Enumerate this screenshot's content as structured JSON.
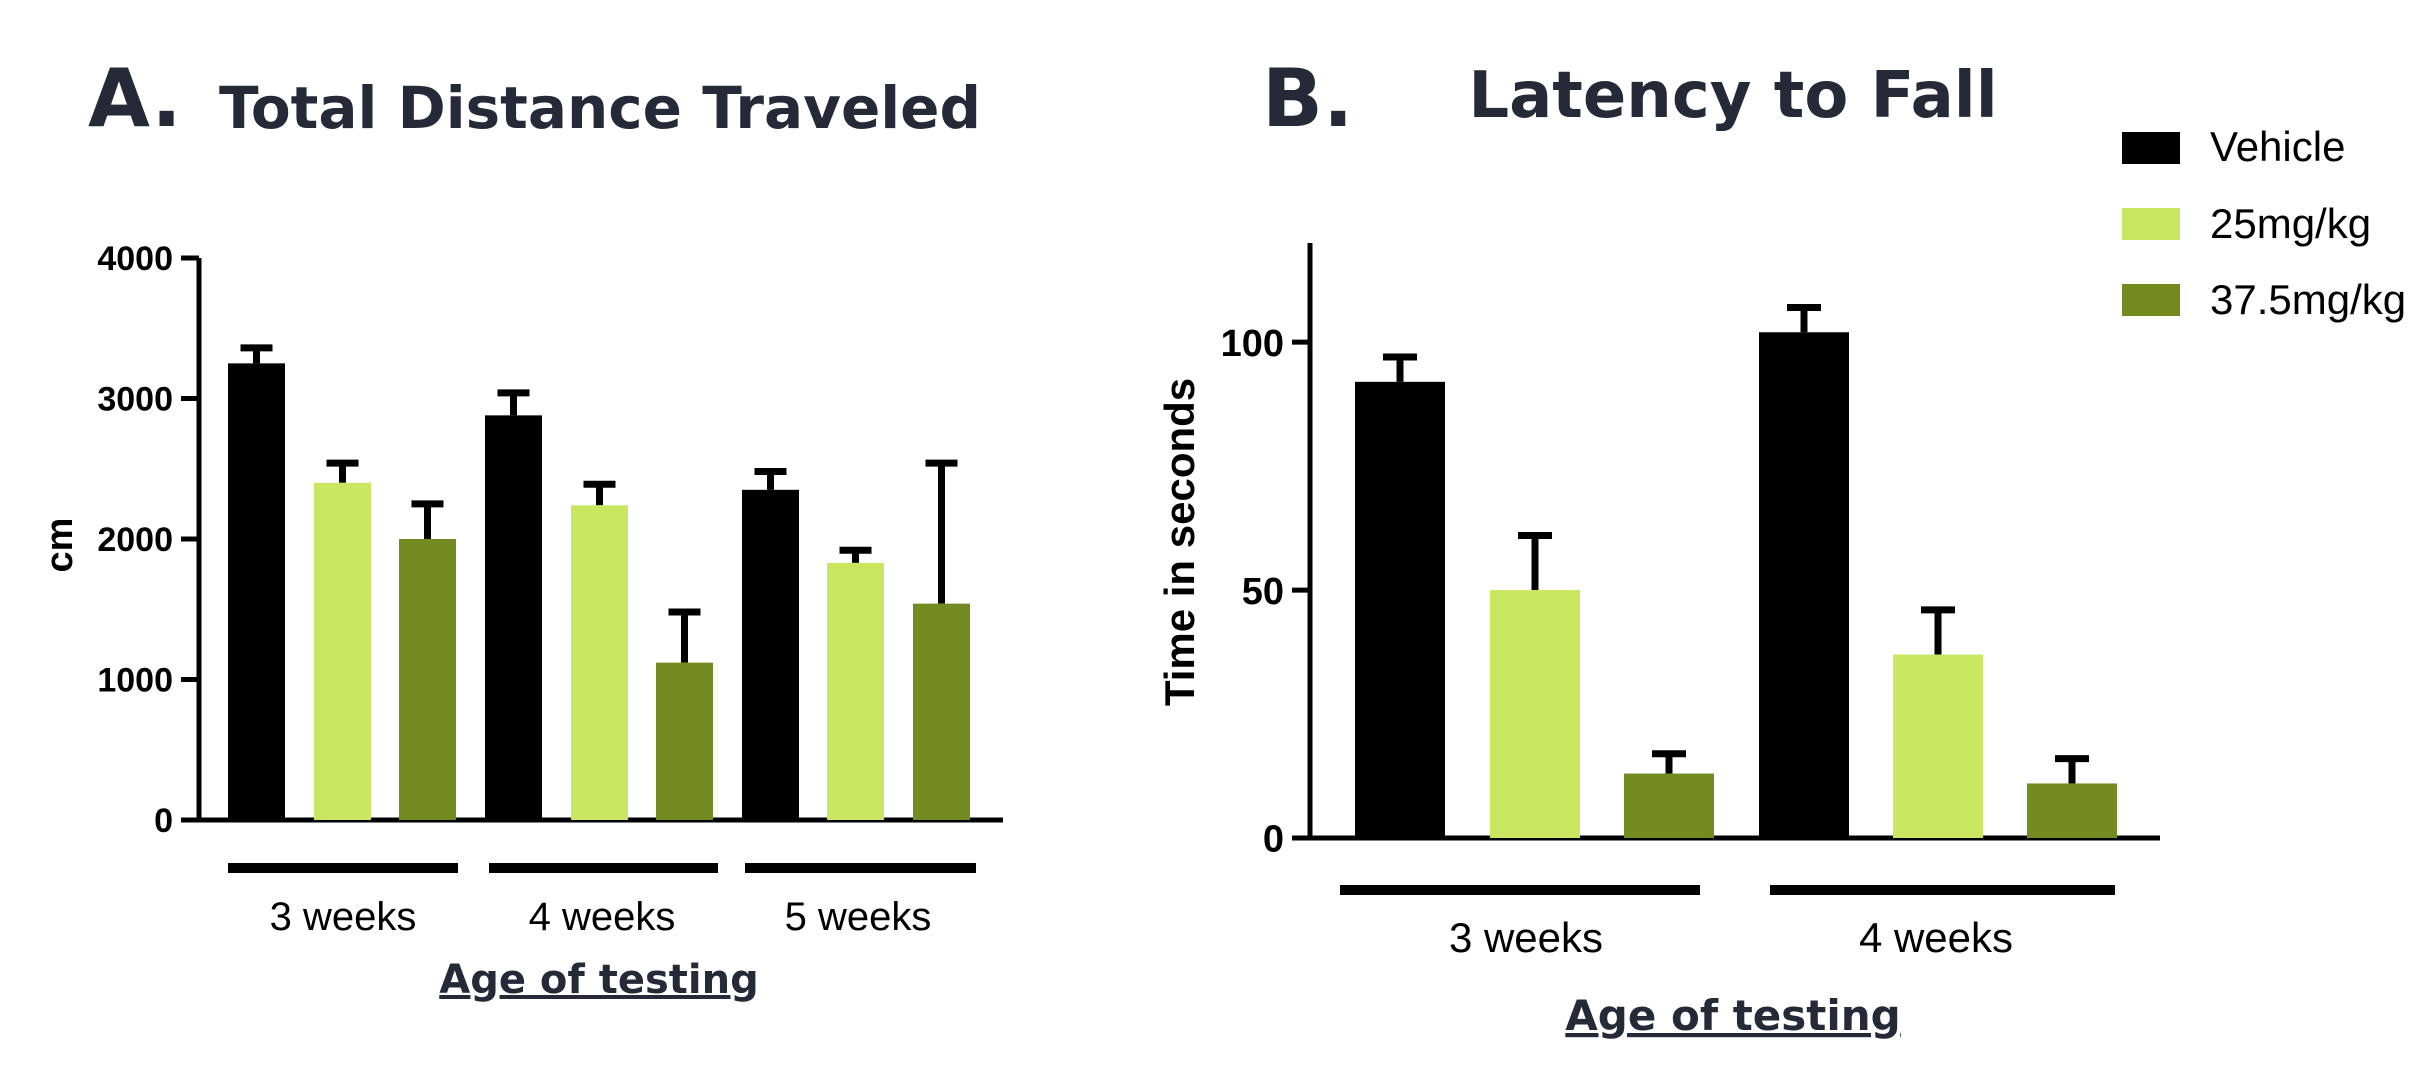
{
  "legend": [
    {
      "name": "Vehicle",
      "color": "#000000"
    },
    {
      "name": "25mg/kg",
      "color": "#c8e660"
    },
    {
      "name": "37.5mg/kg",
      "color": "#748b22"
    }
  ],
  "chart_data": [
    {
      "type": "bar",
      "panel": "A.",
      "title": "Total Distance Traveled",
      "xlabel": "Age of testing",
      "ylabel": "cm",
      "ylim": [
        0,
        4000
      ],
      "yticks": [
        0,
        1000,
        2000,
        3000,
        4000
      ],
      "categories": [
        "3 weeks",
        "4 weeks",
        "5 weeks"
      ],
      "series": [
        {
          "name": "Vehicle",
          "values": [
            3250,
            2880,
            2350
          ],
          "errors": [
            110,
            160,
            130
          ]
        },
        {
          "name": "25mg/kg",
          "values": [
            2400,
            2240,
            1830
          ],
          "errors": [
            140,
            150,
            90
          ]
        },
        {
          "name": "37.5mg/kg",
          "values": [
            2000,
            1120,
            1540
          ],
          "errors": [
            250,
            360,
            1000
          ]
        }
      ],
      "grid": false
    },
    {
      "type": "bar",
      "panel": "B.",
      "title": "Latency to Fall",
      "xlabel": "Age of testing",
      "ylabel": "Time in seconds",
      "ylim": [
        0,
        120
      ],
      "yticks": [
        0,
        50,
        100
      ],
      "categories": [
        "3 weeks",
        "4 weeks"
      ],
      "series": [
        {
          "name": "Vehicle",
          "values": [
            92,
            102
          ],
          "errors": [
            5,
            5
          ]
        },
        {
          "name": "25mg/kg",
          "values": [
            50,
            37
          ],
          "errors": [
            11,
            9
          ]
        },
        {
          "name": "37.5mg/kg",
          "values": [
            13,
            11
          ],
          "errors": [
            4,
            5
          ]
        }
      ],
      "legend_position": "top-right",
      "grid": false
    }
  ]
}
